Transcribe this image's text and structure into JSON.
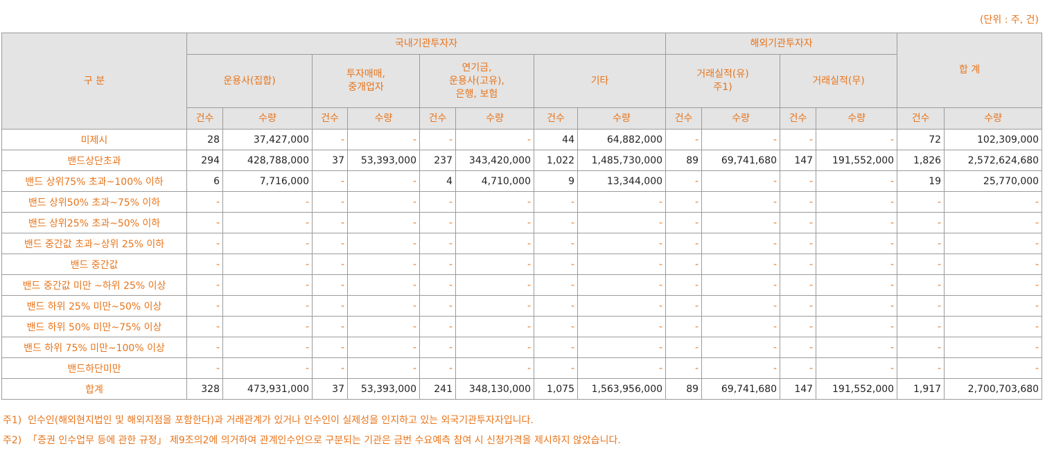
{
  "unit": "(단위 : 주, 건)",
  "table": {
    "header": {
      "category": "구 분",
      "domestic": "국내기관투자자",
      "foreign": "해외기관투자자",
      "total": "합 계",
      "groups": [
        "운용사(집합)",
        "투자매매,\n중개업자",
        "연기금,\n운용사(고유),\n은행, 보험",
        "기타",
        "거래실적(유)\n주1)",
        "거래실적(무)"
      ],
      "sub": [
        "건수",
        "수량",
        "건수",
        "수량",
        "건수",
        "수량",
        "건수",
        "수량",
        "건수",
        "수량",
        "건수",
        "수량",
        "건수",
        "수량"
      ]
    },
    "rows": [
      {
        "label": "미제시",
        "cells": [
          "28",
          "37,427,000",
          "-",
          "-",
          "-",
          "-",
          "44",
          "64,882,000",
          "-",
          "-",
          "-",
          "-",
          "72",
          "102,309,000"
        ]
      },
      {
        "label": "밴드상단초과",
        "cells": [
          "294",
          "428,788,000",
          "37",
          "53,393,000",
          "237",
          "343,420,000",
          "1,022",
          "1,485,730,000",
          "89",
          "69,741,680",
          "147",
          "191,552,000",
          "1,826",
          "2,572,624,680"
        ]
      },
      {
        "label": "밴드 상위75% 초과~100% 이하",
        "cells": [
          "6",
          "7,716,000",
          "-",
          "-",
          "4",
          "4,710,000",
          "9",
          "13,344,000",
          "-",
          "-",
          "-",
          "-",
          "19",
          "25,770,000"
        ]
      },
      {
        "label": "밴드 상위50% 초과~75% 이하",
        "cells": [
          "-",
          "-",
          "-",
          "-",
          "-",
          "-",
          "-",
          "-",
          "-",
          "-",
          "-",
          "-",
          "-",
          "-"
        ]
      },
      {
        "label": "밴드 상위25% 초과~50% 이하",
        "cells": [
          "-",
          "-",
          "-",
          "-",
          "-",
          "-",
          "-",
          "-",
          "-",
          "-",
          "-",
          "-",
          "-",
          "-"
        ]
      },
      {
        "label": "밴드 중간값 초과~상위 25% 이하",
        "cells": [
          "-",
          "-",
          "-",
          "-",
          "-",
          "-",
          "-",
          "-",
          "-",
          "-",
          "-",
          "-",
          "-",
          "-"
        ]
      },
      {
        "label": "밴드 중간값",
        "cells": [
          "-",
          "-",
          "-",
          "-",
          "-",
          "-",
          "-",
          "-",
          "-",
          "-",
          "-",
          "-",
          "-",
          "-"
        ]
      },
      {
        "label": "밴드 중간값 미만 ~하위 25% 이상",
        "cells": [
          "-",
          "-",
          "-",
          "-",
          "-",
          "-",
          "-",
          "-",
          "-",
          "-",
          "-",
          "-",
          "-",
          "-"
        ]
      },
      {
        "label": "밴드 하위 25% 미만~50% 이상",
        "cells": [
          "-",
          "-",
          "-",
          "-",
          "-",
          "-",
          "-",
          "-",
          "-",
          "-",
          "-",
          "-",
          "-",
          "-"
        ]
      },
      {
        "label": "밴드 하위 50% 미만~75% 이상",
        "cells": [
          "-",
          "-",
          "-",
          "-",
          "-",
          "-",
          "-",
          "-",
          "-",
          "-",
          "-",
          "-",
          "-",
          "-"
        ]
      },
      {
        "label": "밴드 하위 75% 미만~100% 이상",
        "cells": [
          "-",
          "-",
          "-",
          "-",
          "-",
          "-",
          "-",
          "-",
          "-",
          "-",
          "-",
          "-",
          "-",
          "-"
        ]
      },
      {
        "label": "밴드하단미만",
        "cells": [
          "-",
          "-",
          "-",
          "-",
          "-",
          "-",
          "-",
          "-",
          "-",
          "-",
          "-",
          "-",
          "-",
          "-"
        ]
      },
      {
        "label": "합계",
        "cells": [
          "328",
          "473,931,000",
          "37",
          "53,393,000",
          "241",
          "348,130,000",
          "1,075",
          "1,563,956,000",
          "89",
          "69,741,680",
          "147",
          "191,552,000",
          "1,917",
          "2,700,703,680"
        ]
      }
    ]
  },
  "notes": [
    "주1)  인수인(해외현지법인 및 해외지점을 포함한다)과 거래관계가 있거나 인수인이 실제성을 인지하고 있는 외국기관투자자입니다.",
    "주2)  「증권 인수업무 등에 관한 규정」 제9조의2에 의거하여 관계인수인으로 구분되는 기관은 금번 수요예측 참여 시 신청가격을 제시하지 않았습니다."
  ]
}
